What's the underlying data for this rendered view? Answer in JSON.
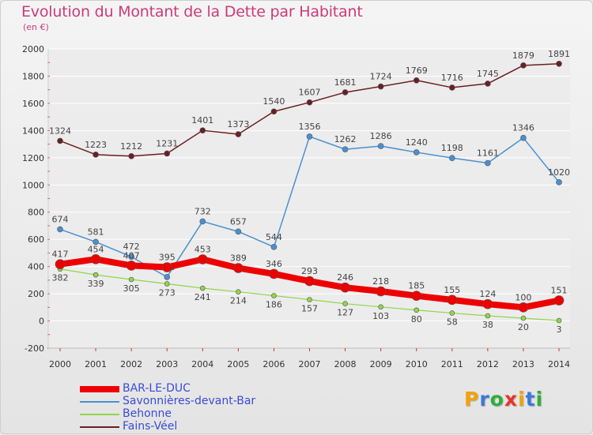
{
  "header": {
    "title": "Evolution du Montant de la Dette par Habitant",
    "unit": "(en €)"
  },
  "logo": {
    "text": "Proxiti",
    "letter_colors": [
      "#f2a20a",
      "#3a7ad9",
      "#2fae3a",
      "#e8342a",
      "#f2a20a",
      "#3a7ad9",
      "#2fae3a"
    ]
  },
  "chart_data": {
    "type": "line",
    "title": "Evolution du Montant de la Dette par Habitant",
    "ylabel": "(en €)",
    "xlabel": "",
    "x": [
      "2000",
      "2001",
      "2002",
      "2003",
      "2004",
      "2005",
      "2006",
      "2007",
      "2008",
      "2009",
      "2010",
      "2011",
      "2012",
      "2013",
      "2014"
    ],
    "ylim": [
      -200,
      2000
    ],
    "yticks": [
      -200,
      0,
      200,
      400,
      600,
      800,
      1000,
      1200,
      1400,
      1600,
      1800,
      2000
    ],
    "grid": "horizontal",
    "legend": "bottom-left",
    "series": [
      {
        "name": "Fains-Véel",
        "color": "#6b1f22",
        "values": [
          1324,
          1223,
          1212,
          1231,
          1401,
          1373,
          1540,
          1607,
          1681,
          1724,
          1769,
          1716,
          1745,
          1879,
          1891
        ]
      },
      {
        "name": "Savonnières-devant-Bar",
        "color": "#4a90cf",
        "values": [
          674,
          581,
          472,
          323,
          732,
          657,
          544,
          1356,
          1262,
          1286,
          1240,
          1198,
          1161,
          1346,
          1020
        ]
      },
      {
        "name": "Behonne",
        "color": "#8ed64a",
        "values": [
          382,
          339,
          305,
          273,
          241,
          214,
          186,
          157,
          127,
          103,
          80,
          58,
          38,
          20,
          3
        ]
      },
      {
        "name": "BAR-LE-DUC",
        "color": "#ee0000",
        "values": [
          417,
          454,
          407,
          395,
          453,
          389,
          346,
          293,
          246,
          218,
          185,
          155,
          124,
          100,
          151
        ]
      }
    ],
    "legend_order": [
      "BAR-LE-DUC",
      "Savonnières-devant-Bar",
      "Behonne",
      "Fains-Véel"
    ]
  }
}
